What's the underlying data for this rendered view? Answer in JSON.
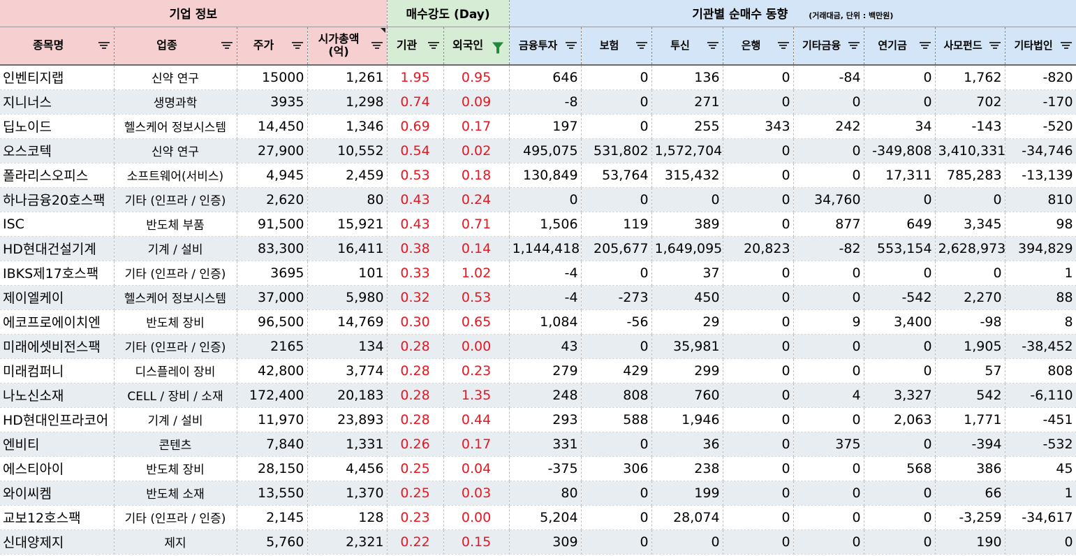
{
  "groups": {
    "company": "기업 정보",
    "strength": "매수강도 (Day)",
    "institution": "기관별 순매수 동향",
    "institution_note": "(거래대금, 단위 : 백만원)"
  },
  "headers": [
    "종목명",
    "업종",
    "주가",
    "시가총액\n(억)",
    "기관",
    "외국인",
    "금융투자",
    "보험",
    "투신",
    "은행",
    "기타금융",
    "연기금",
    "사모펀드",
    "기타법인"
  ],
  "icons": {
    "filter": "filter-sort-icon",
    "active_filter": "filter-active-icon"
  },
  "colors": {
    "company_bg": "#f6cfd0",
    "strength_bg": "#d6ecd4",
    "institution_bg": "#d3e5f6",
    "strength_text": "#e8161f"
  },
  "rows": [
    [
      "인벤티지랩",
      "신약 연구",
      "15000",
      "1,261",
      "1.95",
      "0.95",
      "646",
      "0",
      "136",
      "0",
      "-84",
      "0",
      "1,762",
      "-820"
    ],
    [
      "지니너스",
      "생명과학",
      "3935",
      "1,298",
      "0.74",
      "0.09",
      "-8",
      "0",
      "271",
      "0",
      "0",
      "0",
      "702",
      "-170"
    ],
    [
      "딥노이드",
      "헬스케어 정보시스템",
      "14,450",
      "1,346",
      "0.69",
      "0.17",
      "197",
      "0",
      "255",
      "343",
      "242",
      "34",
      "-143",
      "-520"
    ],
    [
      "오스코텍",
      "신약 연구",
      "27,900",
      "10,552",
      "0.54",
      "0.02",
      "495,075",
      "531,802",
      "1,572,704",
      "0",
      "0",
      "-349,808",
      "3,410,331",
      "-34,746"
    ],
    [
      "폴라리스오피스",
      "소프트웨어(서비스)",
      "4,945",
      "2,459",
      "0.53",
      "0.18",
      "130,849",
      "53,764",
      "315,432",
      "0",
      "0",
      "17,311",
      "785,283",
      "-13,139"
    ],
    [
      "하나금융20호스팩",
      "기타 (인프라 / 인증)",
      "2,620",
      "80",
      "0.43",
      "0.24",
      "0",
      "0",
      "0",
      "0",
      "34,760",
      "0",
      "0",
      "810"
    ],
    [
      "ISC",
      "반도체 부품",
      "91,500",
      "15,921",
      "0.43",
      "0.71",
      "1,506",
      "119",
      "389",
      "0",
      "877",
      "649",
      "3,345",
      "98"
    ],
    [
      "HD현대건설기계",
      "기계 / 설비",
      "83,300",
      "16,411",
      "0.38",
      "0.14",
      "1,144,418",
      "205,677",
      "1,649,095",
      "20,823",
      "-82",
      "553,154",
      "2,628,973",
      "394,829"
    ],
    [
      "IBKS제17호스팩",
      "기타 (인프라 / 인증)",
      "3695",
      "101",
      "0.33",
      "1.02",
      "-4",
      "0",
      "37",
      "0",
      "0",
      "0",
      "0",
      "1"
    ],
    [
      "제이엘케이",
      "헬스케어 정보시스템",
      "37,000",
      "5,980",
      "0.32",
      "0.53",
      "-4",
      "-273",
      "450",
      "0",
      "0",
      "-542",
      "2,270",
      "88"
    ],
    [
      "에코프로에이치엔",
      "반도체 장비",
      "96,500",
      "14,769",
      "0.30",
      "0.65",
      "1,084",
      "-56",
      "29",
      "0",
      "9",
      "3,400",
      "-98",
      "8"
    ],
    [
      "미래에셋비전스팩",
      "기타 (인프라 / 인증)",
      "2165",
      "134",
      "0.28",
      "0.00",
      "43",
      "0",
      "35,981",
      "0",
      "0",
      "0",
      "1,905",
      "-38,452"
    ],
    [
      "미래컴퍼니",
      "디스플레이 장비",
      "42,800",
      "3,774",
      "0.28",
      "0.23",
      "279",
      "429",
      "299",
      "0",
      "0",
      "0",
      "57",
      "808"
    ],
    [
      "나노신소재",
      "CELL / 장비 / 소재",
      "172,400",
      "20,183",
      "0.28",
      "1.35",
      "248",
      "808",
      "760",
      "0",
      "4",
      "3,327",
      "542",
      "-6,110"
    ],
    [
      "HD현대인프라코어",
      "기계 / 설비",
      "11,970",
      "23,893",
      "0.28",
      "0.44",
      "293",
      "588",
      "1,946",
      "0",
      "0",
      "2,063",
      "1,771",
      "-451"
    ],
    [
      "엔비티",
      "콘텐츠",
      "7,840",
      "1,331",
      "0.26",
      "0.17",
      "331",
      "0",
      "36",
      "0",
      "375",
      "0",
      "-394",
      "-532"
    ],
    [
      "에스티아이",
      "반도체 장비",
      "28,150",
      "4,456",
      "0.25",
      "0.04",
      "-375",
      "306",
      "238",
      "0",
      "0",
      "568",
      "386",
      "45"
    ],
    [
      "와이씨켐",
      "반도체 소재",
      "13,550",
      "1,370",
      "0.25",
      "0.03",
      "80",
      "0",
      "199",
      "0",
      "0",
      "0",
      "66",
      "1"
    ],
    [
      "교보12호스팩",
      "기타 (인프라 / 인증)",
      "2,145",
      "128",
      "0.23",
      "0.00",
      "5,204",
      "0",
      "28,074",
      "0",
      "0",
      "0",
      "-3,259",
      "-34,617"
    ],
    [
      "신대양제지",
      "제지",
      "5,760",
      "2,321",
      "0.22",
      "0.15",
      "309",
      "0",
      "0",
      "0",
      "0",
      "0",
      "190",
      "0"
    ]
  ]
}
